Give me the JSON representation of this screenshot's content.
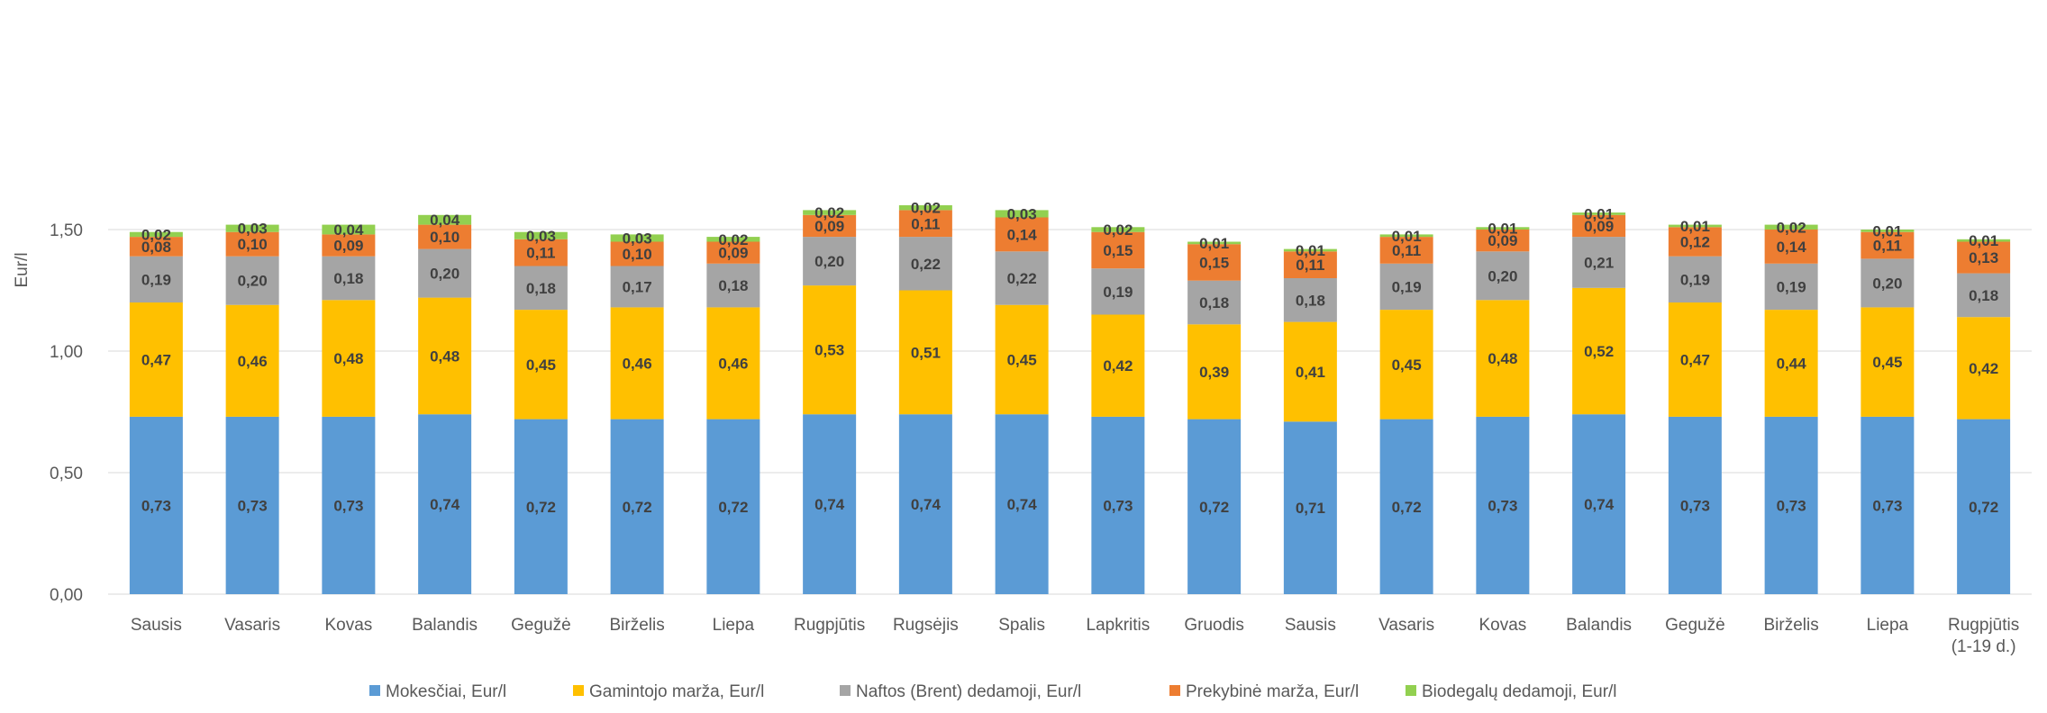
{
  "chart_data": {
    "type": "bar",
    "stacked": true,
    "ylabel": "Eur/l",
    "ylim": [
      0,
      1.6
    ],
    "yticks": [
      "0,00",
      "0,50",
      "1,00",
      "1,50"
    ],
    "ytick_values": [
      0,
      0.5,
      1.0,
      1.5
    ],
    "grid": true,
    "legend_position": "bottom",
    "categories": [
      [
        "Sausis"
      ],
      [
        "Vasaris"
      ],
      [
        "Kovas"
      ],
      [
        "Balandis"
      ],
      [
        "Gegužė"
      ],
      [
        "Birželis"
      ],
      [
        "Liepa"
      ],
      [
        "Rugpjūtis"
      ],
      [
        "Rugsėjis"
      ],
      [
        "Spalis"
      ],
      [
        "Lapkritis"
      ],
      [
        "Gruodis"
      ],
      [
        "Sausis"
      ],
      [
        "Vasaris"
      ],
      [
        "Kovas"
      ],
      [
        "Balandis"
      ],
      [
        "Gegužė"
      ],
      [
        "Birželis"
      ],
      [
        "Liepa"
      ],
      [
        "Rugpjūtis",
        "(1-19 d.)"
      ]
    ],
    "series": [
      {
        "name": "Mokesčiai, Eur/l",
        "color": "#5b9bd5",
        "values": [
          0.73,
          0.73,
          0.73,
          0.74,
          0.72,
          0.72,
          0.72,
          0.74,
          0.74,
          0.74,
          0.73,
          0.72,
          0.71,
          0.72,
          0.73,
          0.74,
          0.73,
          0.73,
          0.73,
          0.72
        ]
      },
      {
        "name": "Gamintojo marža, Eur/l",
        "color": "#ffc000",
        "values": [
          0.47,
          0.46,
          0.48,
          0.48,
          0.45,
          0.46,
          0.46,
          0.53,
          0.51,
          0.45,
          0.42,
          0.39,
          0.41,
          0.45,
          0.48,
          0.52,
          0.47,
          0.44,
          0.45,
          0.42
        ]
      },
      {
        "name": "Naftos (Brent) dedamoji, Eur/l",
        "color": "#a5a5a5",
        "values": [
          0.19,
          0.2,
          0.18,
          0.2,
          0.18,
          0.17,
          0.18,
          0.2,
          0.22,
          0.22,
          0.19,
          0.18,
          0.18,
          0.19,
          0.2,
          0.21,
          0.19,
          0.19,
          0.2,
          0.18
        ]
      },
      {
        "name": "Prekybinė marža, Eur/l",
        "color": "#ed7d31",
        "values": [
          0.08,
          0.1,
          0.09,
          0.1,
          0.11,
          0.1,
          0.09,
          0.09,
          0.11,
          0.14,
          0.15,
          0.15,
          0.11,
          0.11,
          0.09,
          0.09,
          0.12,
          0.14,
          0.11,
          0.13
        ]
      },
      {
        "name": "Biodegalų dedamoji, Eur/l",
        "color": "#92d050",
        "values": [
          0.02,
          0.03,
          0.04,
          0.04,
          0.03,
          0.03,
          0.02,
          0.02,
          0.02,
          0.03,
          0.02,
          0.01,
          0.01,
          0.01,
          0.01,
          0.01,
          0.01,
          0.02,
          0.01,
          0.01
        ]
      }
    ]
  }
}
